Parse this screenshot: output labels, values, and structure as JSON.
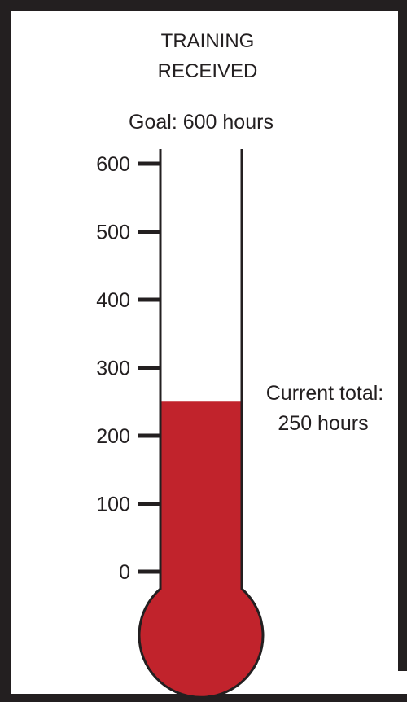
{
  "chart_data": {
    "type": "thermometer",
    "title_lines": [
      "TRAINING",
      "RECEIVED"
    ],
    "goal_label": "Goal: 600 hours",
    "goal": 600,
    "value": 250,
    "current_label_lines": [
      "Current total:",
      "250 hours"
    ],
    "ticks": [
      0,
      100,
      200,
      300,
      400,
      500,
      600
    ],
    "tick_labels": [
      "0",
      "100",
      "200",
      "300",
      "400",
      "500",
      "600"
    ],
    "ylim": [
      0,
      600
    ],
    "colors": {
      "fill": "#c1232c",
      "stroke": "#231f20",
      "frame": "#231f20"
    }
  }
}
